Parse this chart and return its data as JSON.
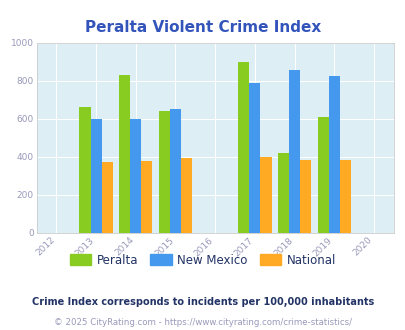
{
  "title": "Peralta Violent Crime Index",
  "title_color": "#3355bb",
  "data_years": [
    2013,
    2014,
    2015,
    2017,
    2018,
    2019
  ],
  "peralta": [
    660,
    830,
    640,
    900,
    420,
    610
  ],
  "new_mexico": [
    600,
    600,
    650,
    790,
    855,
    825
  ],
  "national": [
    370,
    380,
    395,
    400,
    385,
    383
  ],
  "peralta_color": "#88cc22",
  "new_mexico_color": "#4499ee",
  "national_color": "#ffaa22",
  "bg_color": "#ddeef5",
  "bar_width": 0.28,
  "ylim": [
    0,
    1000
  ],
  "yticks": [
    0,
    200,
    400,
    600,
    800,
    1000
  ],
  "xticks": [
    2012,
    2013,
    2014,
    2015,
    2016,
    2017,
    2018,
    2019,
    2020
  ],
  "legend_labels": [
    "Peralta",
    "New Mexico",
    "National"
  ],
  "footnote1": "Crime Index corresponds to incidents per 100,000 inhabitants",
  "footnote2": "© 2025 CityRating.com - https://www.cityrating.com/crime-statistics/",
  "footnote1_color": "#223366",
  "footnote2_color": "#9999bb",
  "grid_color": "#ffffff",
  "tick_color": "#9999bb",
  "spine_color": "#cccccc"
}
